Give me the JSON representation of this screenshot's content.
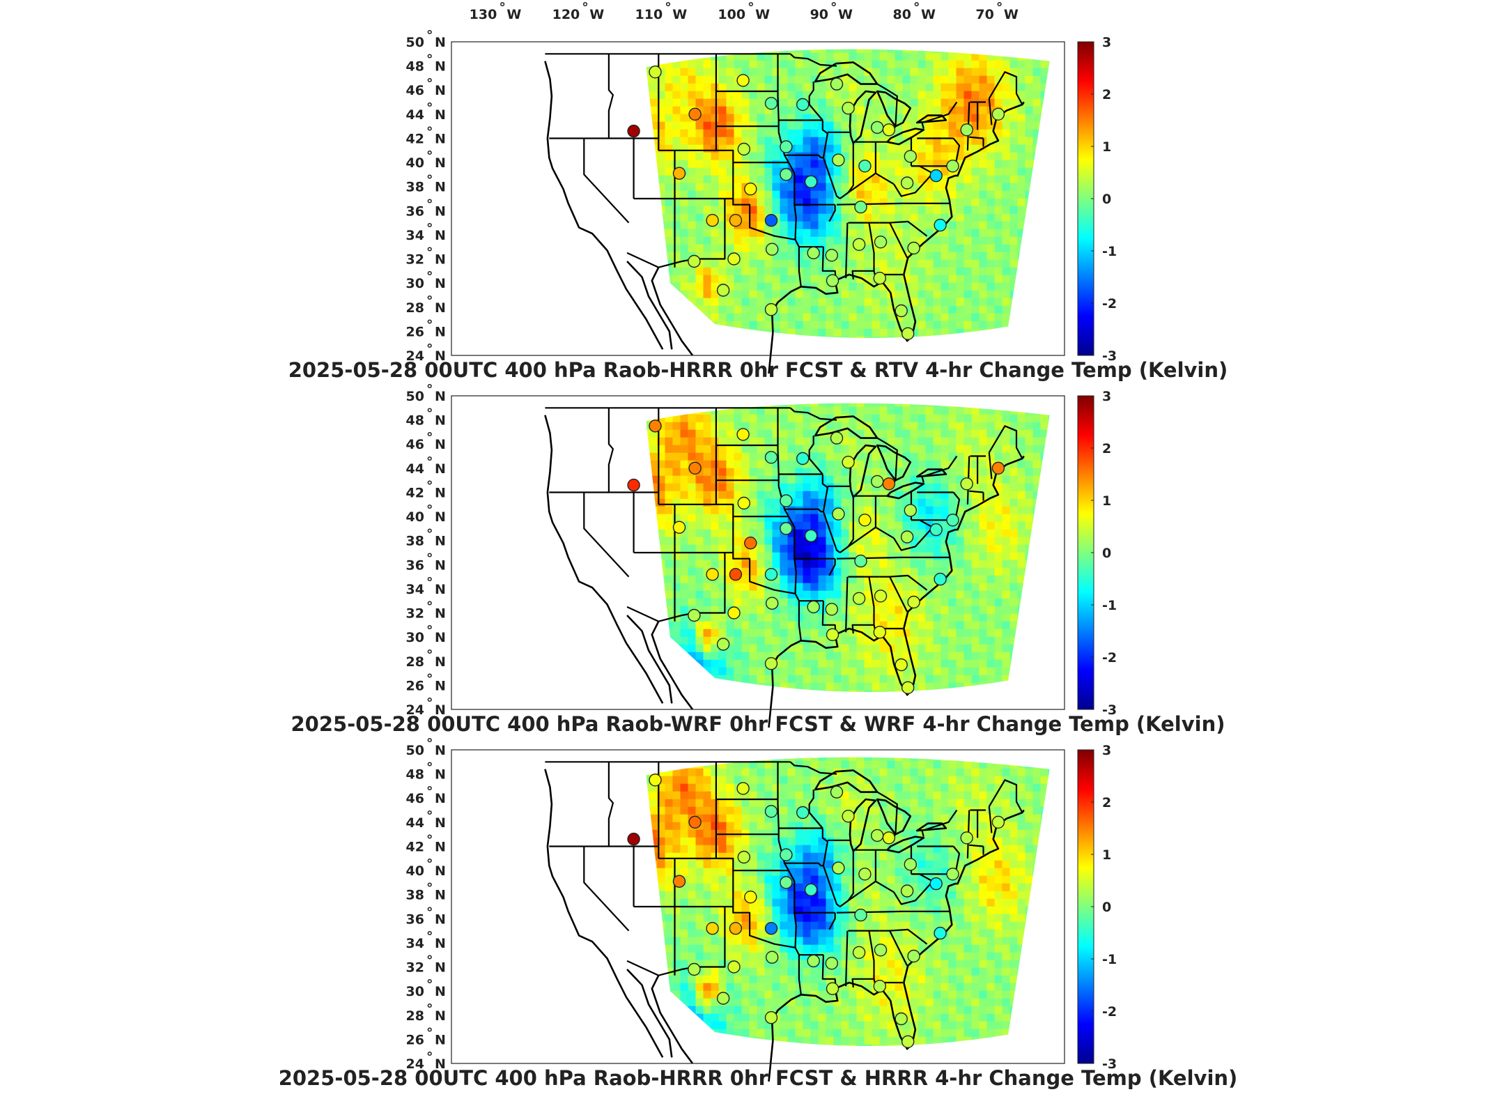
{
  "longitude_ticks": [
    {
      "deg": "130",
      "hemi": "W"
    },
    {
      "deg": "120",
      "hemi": "W"
    },
    {
      "deg": "110",
      "hemi": "W"
    },
    {
      "deg": "100",
      "hemi": "W"
    },
    {
      "deg": "90",
      "hemi": "W"
    },
    {
      "deg": "80",
      "hemi": "W"
    },
    {
      "deg": "70",
      "hemi": "W"
    }
  ],
  "latitude_ticks": [
    {
      "deg": "50",
      "hemi": "N"
    },
    {
      "deg": "48",
      "hemi": "N"
    },
    {
      "deg": "46",
      "hemi": "N"
    },
    {
      "deg": "44",
      "hemi": "N"
    },
    {
      "deg": "42",
      "hemi": "N"
    },
    {
      "deg": "40",
      "hemi": "N"
    },
    {
      "deg": "38",
      "hemi": "N"
    },
    {
      "deg": "36",
      "hemi": "N"
    },
    {
      "deg": "34",
      "hemi": "N"
    },
    {
      "deg": "32",
      "hemi": "N"
    },
    {
      "deg": "30",
      "hemi": "N"
    },
    {
      "deg": "28",
      "hemi": "N"
    },
    {
      "deg": "26",
      "hemi": "N"
    },
    {
      "deg": "24",
      "hemi": "N"
    }
  ],
  "colorbar": {
    "min": -3,
    "max": 3,
    "tick_labels": [
      "3",
      "2",
      "1",
      "0",
      "-1",
      "-2",
      "-3"
    ],
    "colormap": "jet"
  },
  "panels": [
    {
      "title": "2025-05-28 00UTC 400 hPa Raob-HRRR 0hr FCST & RTV 4-hr Change Temp (Kelvin)",
      "variant": 0
    },
    {
      "title": "2025-05-28 00UTC 400 hPa Raob-WRF 0hr FCST & WRF 4-hr Change Temp (Kelvin)",
      "variant": 1
    },
    {
      "title": "2025-05-28 00UTC 400 hPa Raob-HRRR 0hr FCST & HRRR 4-hr Change Temp (Kelvin)",
      "variant": 2
    }
  ],
  "raob_stations": [
    {
      "lon": -111.4,
      "lat": 47.5,
      "values": [
        0.5,
        1.5,
        0.7
      ]
    },
    {
      "lon": -100.8,
      "lat": 46.8,
      "values": [
        0.7,
        0.8,
        0.6
      ]
    },
    {
      "lon": -97.4,
      "lat": 44.9,
      "values": [
        -0.2,
        -0.2,
        -0.2
      ]
    },
    {
      "lon": -93.6,
      "lat": 44.8,
      "values": [
        -0.4,
        -0.5,
        -0.4
      ]
    },
    {
      "lon": -89.5,
      "lat": 46.5,
      "values": [
        0.2,
        0.3,
        0.2
      ]
    },
    {
      "lon": -88.1,
      "lat": 44.5,
      "values": [
        0.3,
        0.5,
        0.4
      ]
    },
    {
      "lon": -84.6,
      "lat": 42.9,
      "values": [
        0.1,
        0.2,
        0.3
      ]
    },
    {
      "lon": -83.2,
      "lat": 42.7,
      "values": [
        0.6,
        1.5,
        0.6
      ]
    },
    {
      "lon": -80.6,
      "lat": 40.5,
      "values": [
        0.2,
        0.3,
        0.2
      ]
    },
    {
      "lon": -73.8,
      "lat": 42.7,
      "values": [
        0.2,
        0.4,
        0.3
      ]
    },
    {
      "lon": -70.0,
      "lat": 44.0,
      "values": [
        0.3,
        1.5,
        0.4
      ]
    },
    {
      "lon": -106.6,
      "lat": 44.0,
      "values": [
        1.5,
        1.5,
        1.6
      ]
    },
    {
      "lon": -114.0,
      "lat": 42.6,
      "values": [
        2.8,
        2.0,
        2.8
      ]
    },
    {
      "lon": -108.5,
      "lat": 39.1,
      "values": [
        1.2,
        0.8,
        1.5
      ]
    },
    {
      "lon": -100.7,
      "lat": 41.1,
      "values": [
        0.4,
        0.7,
        0.4
      ]
    },
    {
      "lon": -95.6,
      "lat": 41.3,
      "values": [
        -0.2,
        -0.2,
        -0.2
      ]
    },
    {
      "lon": -89.3,
      "lat": 40.2,
      "values": [
        0.3,
        0.3,
        0.3
      ]
    },
    {
      "lon": -86.1,
      "lat": 39.7,
      "values": [
        -0.3,
        0.8,
        0.3
      ]
    },
    {
      "lon": -92.6,
      "lat": 38.4,
      "values": [
        -0.4,
        -0.4,
        -0.4
      ]
    },
    {
      "lon": -95.6,
      "lat": 39.0,
      "values": [
        -0.1,
        -0.1,
        -0.1
      ]
    },
    {
      "lon": -99.9,
      "lat": 37.8,
      "values": [
        0.8,
        1.6,
        0.8
      ]
    },
    {
      "lon": -104.5,
      "lat": 35.2,
      "values": [
        1.0,
        0.9,
        1.0
      ]
    },
    {
      "lon": -101.7,
      "lat": 35.2,
      "values": [
        1.2,
        1.8,
        1.2
      ]
    },
    {
      "lon": -97.4,
      "lat": 35.2,
      "values": [
        -1.7,
        -0.5,
        -1.5
      ]
    },
    {
      "lon": -86.6,
      "lat": 36.3,
      "values": [
        -0.1,
        -0.2,
        -0.2
      ]
    },
    {
      "lon": -81.0,
      "lat": 38.3,
      "values": [
        0.3,
        0.3,
        0.3
      ]
    },
    {
      "lon": -77.5,
      "lat": 38.9,
      "values": [
        -1.0,
        -0.4,
        -0.8
      ]
    },
    {
      "lon": -75.5,
      "lat": 39.7,
      "values": [
        0.2,
        -0.3,
        0.2
      ]
    },
    {
      "lon": -77.0,
      "lat": 34.8,
      "values": [
        -0.7,
        -0.5,
        -0.6
      ]
    },
    {
      "lon": -80.2,
      "lat": 32.9,
      "values": [
        0.3,
        0.5,
        0.2
      ]
    },
    {
      "lon": -84.2,
      "lat": 33.4,
      "values": [
        0.2,
        0.5,
        0.2
      ]
    },
    {
      "lon": -86.8,
      "lat": 33.2,
      "values": [
        0.4,
        0.4,
        0.4
      ]
    },
    {
      "lon": -90.1,
      "lat": 32.3,
      "values": [
        0.2,
        0.3,
        0.2
      ]
    },
    {
      "lon": -92.3,
      "lat": 32.5,
      "values": [
        0.2,
        0.2,
        0.2
      ]
    },
    {
      "lon": -97.3,
      "lat": 32.8,
      "values": [
        0.2,
        0.3,
        0.2
      ]
    },
    {
      "lon": -101.9,
      "lat": 32.0,
      "values": [
        0.6,
        0.8,
        0.5
      ]
    },
    {
      "lon": -106.7,
      "lat": 31.8,
      "values": [
        0.4,
        0.3,
        0.3
      ]
    },
    {
      "lon": -103.2,
      "lat": 29.4,
      "values": [
        0.4,
        0.3,
        0.3
      ]
    },
    {
      "lon": -97.4,
      "lat": 27.8,
      "values": [
        0.4,
        0.4,
        0.4
      ]
    },
    {
      "lon": -90.0,
      "lat": 30.2,
      "values": [
        0.2,
        0.5,
        0.4
      ]
    },
    {
      "lon": -84.3,
      "lat": 30.4,
      "values": [
        0.4,
        0.6,
        0.3
      ]
    },
    {
      "lon": -81.7,
      "lat": 27.7,
      "values": [
        0.3,
        0.6,
        0.3
      ]
    },
    {
      "lon": -80.9,
      "lat": 25.8,
      "values": [
        0.4,
        0.5,
        0.4
      ]
    }
  ]
}
